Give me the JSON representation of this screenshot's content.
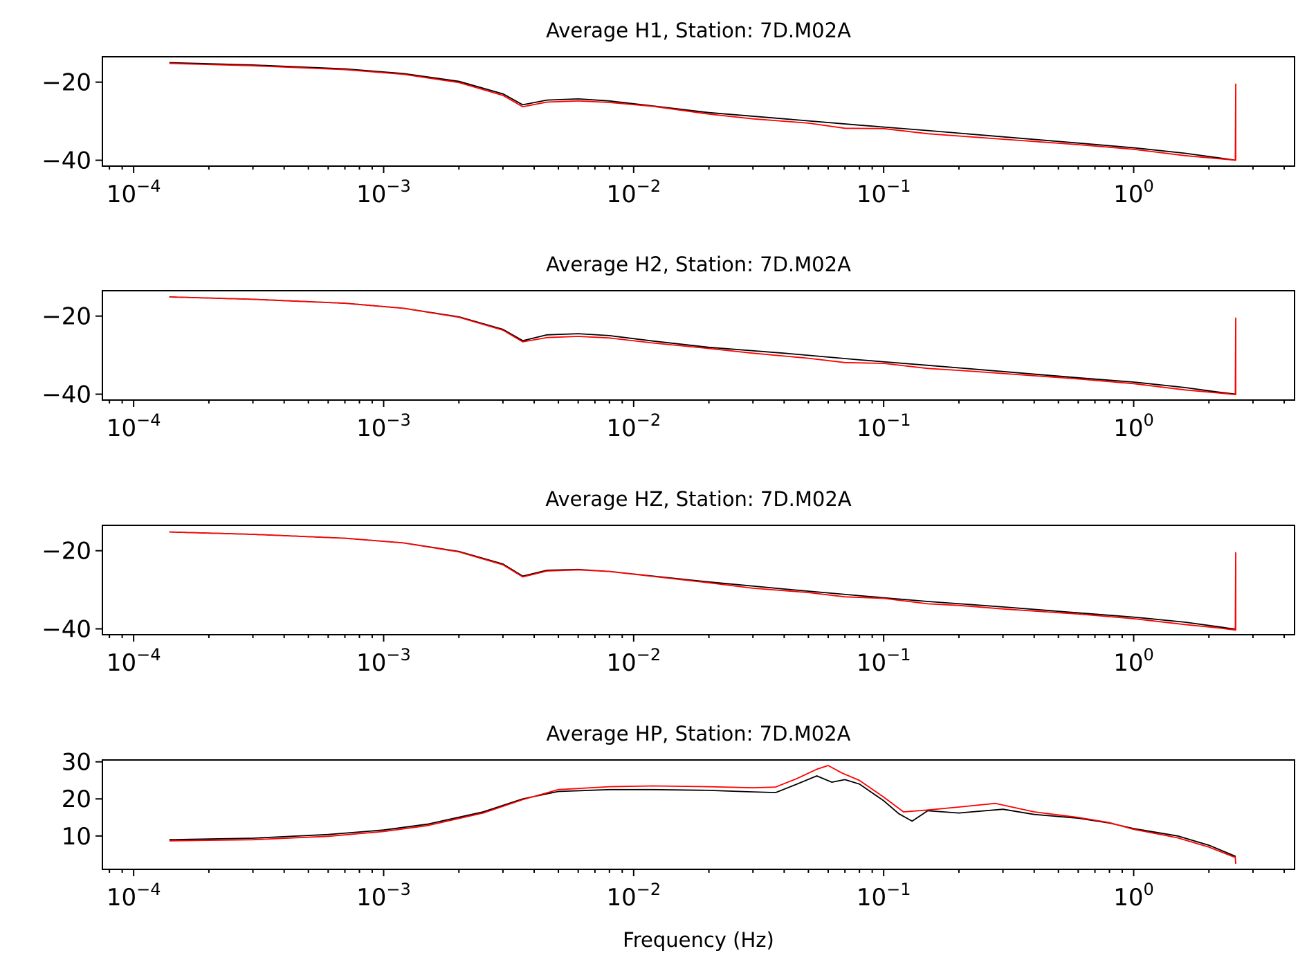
{
  "chart_data": [
    {
      "type": "line",
      "title": "Average H1, Station: 7D.M02A",
      "xlabel": "",
      "ylabel": "",
      "xscale": "log",
      "xlim": [
        7.5e-05,
        4.4
      ],
      "ylim": [
        -41.5,
        -13.5
      ],
      "yticks": [
        -20,
        -40
      ],
      "ytick_labels": [
        "−20",
        "−40"
      ],
      "xticks": [
        0.0001,
        0.001,
        0.01,
        0.1,
        1
      ],
      "xtick_labels": [
        [
          "10",
          "−4"
        ],
        [
          "10",
          "−3"
        ],
        [
          "10",
          "−2"
        ],
        [
          "10",
          "−1"
        ],
        [
          "10",
          "0"
        ]
      ],
      "series": [
        {
          "color": "#000000",
          "x": [
            0.000139,
            0.0003,
            0.0007,
            0.0012,
            0.002,
            0.003,
            0.0036,
            0.0045,
            0.006,
            0.008,
            0.012,
            0.02,
            0.04,
            0.08,
            0.15,
            0.3,
            0.6,
            1.0,
            1.6,
            2.2,
            2.56
          ],
          "y": [
            -15.0,
            -15.6,
            -16.6,
            -17.8,
            -19.8,
            -23.0,
            -25.8,
            -24.6,
            -24.3,
            -24.8,
            -26.1,
            -27.8,
            -29.4,
            -31.0,
            -32.4,
            -34.0,
            -35.6,
            -36.8,
            -38.2,
            -39.4,
            -40.0
          ]
        },
        {
          "color": "#ff0000",
          "x": [
            0.000139,
            0.0003,
            0.0007,
            0.0012,
            0.002,
            0.003,
            0.0036,
            0.0045,
            0.006,
            0.008,
            0.012,
            0.02,
            0.03,
            0.05,
            0.07,
            0.1,
            0.15,
            0.2,
            0.3,
            0.6,
            1.0,
            1.6,
            2.2,
            2.55,
            2.56,
            2.56,
            2.57
          ],
          "y": [
            -15.2,
            -15.8,
            -16.8,
            -18.0,
            -20.1,
            -23.4,
            -26.3,
            -25.1,
            -24.8,
            -25.2,
            -26.2,
            -28.2,
            -29.4,
            -30.5,
            -31.8,
            -31.9,
            -33.2,
            -33.8,
            -34.6,
            -36.0,
            -37.2,
            -38.8,
            -39.6,
            -40.0,
            -20.5,
            -40.0,
            -40.0
          ]
        }
      ]
    },
    {
      "type": "line",
      "title": "Average H2, Station: 7D.M02A",
      "xlabel": "",
      "ylabel": "",
      "xscale": "log",
      "xlim": [
        7.5e-05,
        4.4
      ],
      "ylim": [
        -41.5,
        -13.5
      ],
      "yticks": [
        -20,
        -40
      ],
      "ytick_labels": [
        "−20",
        "−40"
      ],
      "xticks": [
        0.0001,
        0.001,
        0.01,
        0.1,
        1
      ],
      "xtick_labels": [
        [
          "10",
          "−4"
        ],
        [
          "10",
          "−3"
        ],
        [
          "10",
          "−2"
        ],
        [
          "10",
          "−1"
        ],
        [
          "10",
          "0"
        ]
      ],
      "series": [
        {
          "color": "#000000",
          "x": [
            0.000139,
            0.0003,
            0.0007,
            0.0012,
            0.002,
            0.003,
            0.0036,
            0.0045,
            0.006,
            0.008,
            0.012,
            0.02,
            0.04,
            0.08,
            0.15,
            0.3,
            0.6,
            1.0,
            1.6,
            2.2,
            2.56
          ],
          "y": [
            -15.1,
            -15.7,
            -16.7,
            -18.0,
            -20.2,
            -23.4,
            -26.3,
            -24.8,
            -24.5,
            -25.0,
            -26.4,
            -28.0,
            -29.5,
            -31.2,
            -32.6,
            -34.2,
            -35.8,
            -36.9,
            -38.3,
            -39.5,
            -40.0
          ]
        },
        {
          "color": "#ff0000",
          "x": [
            0.000139,
            0.0003,
            0.0007,
            0.0012,
            0.002,
            0.003,
            0.0036,
            0.0045,
            0.006,
            0.008,
            0.012,
            0.02,
            0.03,
            0.05,
            0.07,
            0.1,
            0.15,
            0.2,
            0.3,
            0.6,
            1.0,
            1.6,
            2.2,
            2.55,
            2.56,
            2.56,
            2.57
          ],
          "y": [
            -15.1,
            -15.7,
            -16.7,
            -18.0,
            -20.3,
            -23.6,
            -26.6,
            -25.5,
            -25.2,
            -25.6,
            -26.9,
            -28.3,
            -29.5,
            -30.8,
            -31.9,
            -32.1,
            -33.4,
            -33.9,
            -34.7,
            -36.1,
            -37.3,
            -38.9,
            -39.7,
            -40.1,
            -20.5,
            -40.1,
            -40.1
          ]
        }
      ]
    },
    {
      "type": "line",
      "title": "Average HZ, Station: 7D.M02A",
      "xlabel": "",
      "ylabel": "",
      "xscale": "log",
      "xlim": [
        7.5e-05,
        4.4
      ],
      "ylim": [
        -41.5,
        -13.5
      ],
      "yticks": [
        -20,
        -40
      ],
      "ytick_labels": [
        "−20",
        "−40"
      ],
      "xticks": [
        0.0001,
        0.001,
        0.01,
        0.1,
        1
      ],
      "xtick_labels": [
        [
          "10",
          "−4"
        ],
        [
          "10",
          "−3"
        ],
        [
          "10",
          "−2"
        ],
        [
          "10",
          "−1"
        ],
        [
          "10",
          "0"
        ]
      ],
      "series": [
        {
          "color": "#000000",
          "x": [
            0.000139,
            0.0003,
            0.0007,
            0.0012,
            0.002,
            0.003,
            0.0036,
            0.0045,
            0.006,
            0.008,
            0.012,
            0.02,
            0.04,
            0.08,
            0.15,
            0.3,
            0.6,
            1.0,
            1.6,
            2.2,
            2.56
          ],
          "y": [
            -15.2,
            -15.8,
            -16.8,
            -18.0,
            -20.2,
            -23.4,
            -26.5,
            -25.0,
            -24.8,
            -25.3,
            -26.5,
            -28.0,
            -29.8,
            -31.5,
            -33.0,
            -34.4,
            -35.9,
            -37.0,
            -38.3,
            -39.5,
            -40.1
          ]
        },
        {
          "color": "#ff0000",
          "x": [
            0.000139,
            0.0003,
            0.0007,
            0.0012,
            0.002,
            0.003,
            0.0036,
            0.0045,
            0.006,
            0.008,
            0.012,
            0.02,
            0.03,
            0.05,
            0.07,
            0.1,
            0.15,
            0.2,
            0.3,
            0.6,
            1.0,
            1.6,
            2.2,
            2.55,
            2.56,
            2.56,
            2.57
          ],
          "y": [
            -15.2,
            -15.8,
            -16.8,
            -18.0,
            -20.3,
            -23.6,
            -26.7,
            -25.2,
            -24.9,
            -25.3,
            -26.6,
            -28.2,
            -29.6,
            -30.7,
            -31.8,
            -32.2,
            -33.6,
            -34.0,
            -34.9,
            -36.2,
            -37.4,
            -38.9,
            -39.8,
            -40.3,
            -20.5,
            -40.3,
            -40.3
          ]
        }
      ]
    },
    {
      "type": "line",
      "title": "Average HP, Station: 7D.M02A",
      "xlabel": "Frequency (Hz)",
      "ylabel": "",
      "xscale": "log",
      "xlim": [
        7.5e-05,
        4.4
      ],
      "ylim": [
        1.0,
        30.5
      ],
      "yticks": [
        30,
        20,
        10
      ],
      "ytick_labels": [
        "30",
        "20",
        "10"
      ],
      "xticks": [
        0.0001,
        0.001,
        0.01,
        0.1,
        1
      ],
      "xtick_labels": [
        [
          "10",
          "−4"
        ],
        [
          "10",
          "−3"
        ],
        [
          "10",
          "−2"
        ],
        [
          "10",
          "−1"
        ],
        [
          "10",
          "0"
        ]
      ],
      "series": [
        {
          "color": "#000000",
          "x": [
            0.000139,
            0.0003,
            0.0006,
            0.001,
            0.0015,
            0.0025,
            0.0036,
            0.005,
            0.008,
            0.012,
            0.02,
            0.03,
            0.037,
            0.045,
            0.054,
            0.062,
            0.07,
            0.08,
            0.1,
            0.115,
            0.13,
            0.15,
            0.2,
            0.3,
            0.4,
            0.6,
            0.8,
            1.0,
            1.5,
            2.0,
            2.56
          ],
          "y": [
            9.0,
            9.4,
            10.4,
            11.6,
            13.2,
            16.5,
            20.0,
            22.0,
            22.5,
            22.5,
            22.3,
            21.9,
            21.7,
            24.0,
            26.2,
            24.5,
            25.2,
            24.0,
            19.5,
            16.0,
            14.0,
            16.8,
            16.2,
            17.2,
            15.8,
            14.8,
            13.5,
            12.0,
            10.0,
            7.5,
            4.5
          ]
        },
        {
          "color": "#ff0000",
          "x": [
            0.000139,
            0.0003,
            0.0006,
            0.001,
            0.0015,
            0.0025,
            0.0036,
            0.005,
            0.008,
            0.012,
            0.02,
            0.03,
            0.037,
            0.045,
            0.054,
            0.06,
            0.068,
            0.08,
            0.1,
            0.12,
            0.15,
            0.2,
            0.28,
            0.4,
            0.6,
            0.8,
            1.0,
            1.5,
            2.0,
            2.55,
            2.56
          ],
          "y": [
            8.7,
            9.0,
            9.9,
            11.2,
            12.8,
            16.2,
            19.8,
            22.5,
            23.3,
            23.5,
            23.3,
            23.0,
            23.2,
            25.5,
            28.0,
            29.0,
            27.0,
            25.0,
            20.5,
            16.5,
            17.0,
            17.8,
            18.8,
            16.5,
            15.0,
            13.6,
            11.8,
            9.5,
            7.0,
            4.2,
            2.5
          ]
        }
      ]
    }
  ]
}
